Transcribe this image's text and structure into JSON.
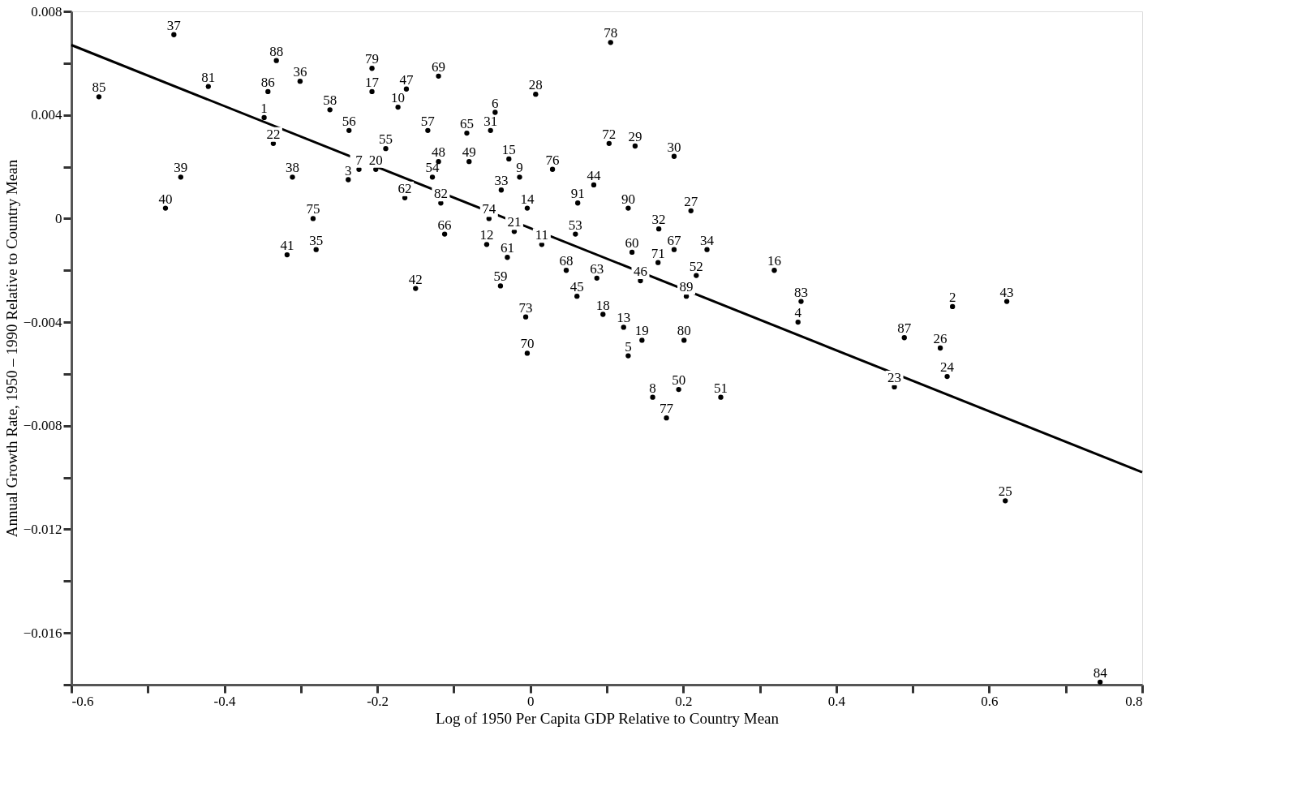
{
  "chart_data": {
    "type": "scatter",
    "xlabel": "Log of 1950 Per Capita GDP Relative to Country Mean",
    "ylabel": "Annual Growth Rate, 1950 – 1990 Relative to Country Mean",
    "xlim": [
      -0.6,
      0.8
    ],
    "ylim": [
      -0.018,
      0.008
    ],
    "xticks": [
      -0.6,
      {
        "value": -0.5,
        "label": null
      },
      -0.4,
      {
        "value": -0.3,
        "label": null
      },
      -0.2,
      {
        "value": -0.1,
        "label": null
      },
      0,
      {
        "value": 0.1,
        "label": null
      },
      0.2,
      {
        "value": 0.3,
        "label": null
      },
      0.4,
      {
        "value": 0.5,
        "label": null
      },
      0.6,
      {
        "value": 0.7,
        "label": null
      },
      0.8
    ],
    "yticks": [
      {
        "value": -0.018,
        "label": null
      },
      {
        "value": -0.016,
        "label": "−0.016"
      },
      {
        "value": -0.014,
        "label": null
      },
      {
        "value": -0.012,
        "label": "−0.012"
      },
      {
        "value": -0.01,
        "label": null
      },
      {
        "value": -0.008,
        "label": "−0.008"
      },
      {
        "value": -0.006,
        "label": null
      },
      {
        "value": -0.004,
        "label": "−0.004"
      },
      {
        "value": -0.002,
        "label": null
      },
      0,
      {
        "value": 0.002,
        "label": null
      },
      0.004,
      {
        "value": 0.006,
        "label": null
      },
      0.008
    ],
    "grid": false,
    "series": [
      {
        "type": "scatter",
        "color": "#000000",
        "marker": "circle",
        "x": [
          -0.466,
          -0.332,
          -0.421,
          -0.343,
          -0.301,
          -0.564,
          -0.207,
          -0.207,
          -0.162,
          -0.12,
          -0.173,
          0.105,
          0.007,
          -0.262,
          -0.348,
          -0.336,
          -0.237,
          -0.046,
          -0.134,
          -0.083,
          -0.052,
          -0.189,
          0.103,
          0.137,
          0.188,
          -0.457,
          -0.477,
          -0.311,
          -0.224,
          -0.202,
          -0.238,
          -0.12,
          -0.08,
          -0.028,
          0.029,
          -0.128,
          -0.014,
          0.083,
          -0.038,
          -0.164,
          -0.117,
          0.062,
          0.128,
          0.21,
          -0.004,
          -0.284,
          -0.054,
          -0.021,
          -0.112,
          0.168,
          0.059,
          0.015,
          -0.318,
          -0.28,
          -0.03,
          -0.057,
          0.133,
          0.188,
          0.231,
          0.167,
          0.047,
          0.087,
          0.144,
          0.217,
          0.319,
          0.204,
          -0.15,
          -0.039,
          0.061,
          0.354,
          0.35,
          0.552,
          0.623,
          -0.006,
          0.095,
          0.122,
          0.146,
          0.128,
          0.201,
          0.489,
          0.536,
          -0.004,
          0.545,
          0.476,
          0.16,
          0.194,
          0.249,
          0.178,
          0.621,
          0.745
        ],
        "values": [
          0.0071,
          0.0061,
          0.0051,
          0.0049,
          0.0053,
          0.0047,
          0.0058,
          0.0049,
          0.005,
          0.0055,
          0.0043,
          0.0068,
          0.0048,
          0.0042,
          0.0039,
          0.0029,
          0.0034,
          0.0041,
          0.0034,
          0.0033,
          0.0034,
          0.0027,
          0.0029,
          0.0028,
          0.0024,
          0.0016,
          0.0004,
          0.0016,
          0.0019,
          0.0019,
          0.0015,
          0.0022,
          0.0022,
          0.0023,
          0.0019,
          0.0016,
          0.0016,
          0.0013,
          0.0011,
          0.0008,
          0.0006,
          0.0006,
          0.0004,
          0.0003,
          0.0004,
          0.0,
          0.0,
          -0.0005,
          -0.0006,
          -0.0004,
          -0.0006,
          -0.001,
          -0.0014,
          -0.0012,
          -0.0015,
          -0.001,
          -0.0013,
          -0.0012,
          -0.0012,
          -0.0017,
          -0.002,
          -0.0023,
          -0.0024,
          -0.0022,
          -0.002,
          -0.003,
          -0.0027,
          -0.0026,
          -0.003,
          -0.0032,
          -0.004,
          -0.0034,
          -0.0032,
          -0.0038,
          -0.0037,
          -0.0042,
          -0.0047,
          -0.0053,
          -0.0047,
          -0.0046,
          -0.005,
          -0.0052,
          -0.0061,
          -0.0065,
          -0.0069,
          -0.0066,
          -0.0069,
          -0.0077,
          -0.0109,
          -0.0179
        ]
      },
      {
        "type": "line",
        "color": "#000000",
        "x": [
          -0.6,
          0.8
        ],
        "values": [
          0.0067,
          -0.0098
        ]
      }
    ],
    "annotations": [
      {
        "text": "37",
        "x": -0.466,
        "y": 0.0071
      },
      {
        "text": "88",
        "x": -0.332,
        "y": 0.0061
      },
      {
        "text": "81",
        "x": -0.421,
        "y": 0.0051
      },
      {
        "text": "86",
        "x": -0.343,
        "y": 0.0049
      },
      {
        "text": "36",
        "x": -0.301,
        "y": 0.0053
      },
      {
        "text": "85",
        "x": -0.564,
        "y": 0.0047
      },
      {
        "text": "79",
        "x": -0.207,
        "y": 0.0058
      },
      {
        "text": "17",
        "x": -0.207,
        "y": 0.0049
      },
      {
        "text": "47",
        "x": -0.162,
        "y": 0.005
      },
      {
        "text": "69",
        "x": -0.12,
        "y": 0.0055
      },
      {
        "text": "10",
        "x": -0.173,
        "y": 0.0043
      },
      {
        "text": "78",
        "x": 0.105,
        "y": 0.0068
      },
      {
        "text": "28",
        "x": 0.007,
        "y": 0.0048
      },
      {
        "text": "58",
        "x": -0.262,
        "y": 0.0042
      },
      {
        "text": "1",
        "x": -0.348,
        "y": 0.0039
      },
      {
        "text": "22",
        "x": -0.336,
        "y": 0.0029
      },
      {
        "text": "56",
        "x": -0.237,
        "y": 0.0034
      },
      {
        "text": "6",
        "x": -0.046,
        "y": 0.0041
      },
      {
        "text": "57",
        "x": -0.134,
        "y": 0.0034
      },
      {
        "text": "65",
        "x": -0.083,
        "y": 0.0033
      },
      {
        "text": "31",
        "x": -0.052,
        "y": 0.0034
      },
      {
        "text": "55",
        "x": -0.189,
        "y": 0.0027
      },
      {
        "text": "72",
        "x": 0.103,
        "y": 0.0029
      },
      {
        "text": "29",
        "x": 0.137,
        "y": 0.0028
      },
      {
        "text": "30",
        "x": 0.188,
        "y": 0.0024
      },
      {
        "text": "39",
        "x": -0.457,
        "y": 0.0016
      },
      {
        "text": "40",
        "x": -0.477,
        "y": 0.0004
      },
      {
        "text": "38",
        "x": -0.311,
        "y": 0.0016
      },
      {
        "text": "7",
        "x": -0.224,
        "y": 0.0019
      },
      {
        "text": "20",
        "x": -0.202,
        "y": 0.0019
      },
      {
        "text": "3",
        "x": -0.238,
        "y": 0.0015
      },
      {
        "text": "48",
        "x": -0.12,
        "y": 0.0022
      },
      {
        "text": "49",
        "x": -0.08,
        "y": 0.0022
      },
      {
        "text": "15",
        "x": -0.028,
        "y": 0.0023
      },
      {
        "text": "76",
        "x": 0.029,
        "y": 0.0019
      },
      {
        "text": "54",
        "x": -0.128,
        "y": 0.0016
      },
      {
        "text": "9",
        "x": -0.014,
        "y": 0.0016
      },
      {
        "text": "44",
        "x": 0.083,
        "y": 0.0013
      },
      {
        "text": "33",
        "x": -0.038,
        "y": 0.0011
      },
      {
        "text": "62",
        "x": -0.164,
        "y": 0.0008
      },
      {
        "text": "82",
        "x": -0.117,
        "y": 0.0006
      },
      {
        "text": "91",
        "x": 0.062,
        "y": 0.0006
      },
      {
        "text": "90",
        "x": 0.128,
        "y": 0.0004
      },
      {
        "text": "27",
        "x": 0.21,
        "y": 0.0003
      },
      {
        "text": "14",
        "x": -0.004,
        "y": 0.0004
      },
      {
        "text": "75",
        "x": -0.284,
        "y": 0.0
      },
      {
        "text": "74",
        "x": -0.054,
        "y": 0.0
      },
      {
        "text": "21",
        "x": -0.021,
        "y": -0.0005
      },
      {
        "text": "66",
        "x": -0.112,
        "y": -0.0006
      },
      {
        "text": "32",
        "x": 0.168,
        "y": -0.0004
      },
      {
        "text": "53",
        "x": 0.059,
        "y": -0.0006
      },
      {
        "text": "11",
        "x": 0.015,
        "y": -0.001
      },
      {
        "text": "41",
        "x": -0.318,
        "y": -0.0014
      },
      {
        "text": "35",
        "x": -0.28,
        "y": -0.0012
      },
      {
        "text": "61",
        "x": -0.03,
        "y": -0.0015
      },
      {
        "text": "12",
        "x": -0.057,
        "y": -0.001
      },
      {
        "text": "60",
        "x": 0.133,
        "y": -0.0013
      },
      {
        "text": "67",
        "x": 0.188,
        "y": -0.0012
      },
      {
        "text": "34",
        "x": 0.231,
        "y": -0.0012
      },
      {
        "text": "71",
        "x": 0.167,
        "y": -0.0017
      },
      {
        "text": "68",
        "x": 0.047,
        "y": -0.002
      },
      {
        "text": "63",
        "x": 0.087,
        "y": -0.0023
      },
      {
        "text": "46",
        "x": 0.144,
        "y": -0.0024
      },
      {
        "text": "52",
        "x": 0.217,
        "y": -0.0022
      },
      {
        "text": "16",
        "x": 0.319,
        "y": -0.002
      },
      {
        "text": "89",
        "x": 0.204,
        "y": -0.003
      },
      {
        "text": "42",
        "x": -0.15,
        "y": -0.0027
      },
      {
        "text": "59",
        "x": -0.039,
        "y": -0.0026
      },
      {
        "text": "45",
        "x": 0.061,
        "y": -0.003
      },
      {
        "text": "83",
        "x": 0.354,
        "y": -0.0032
      },
      {
        "text": "4",
        "x": 0.35,
        "y": -0.004
      },
      {
        "text": "2",
        "x": 0.552,
        "y": -0.0034
      },
      {
        "text": "43",
        "x": 0.623,
        "y": -0.0032
      },
      {
        "text": "73",
        "x": -0.006,
        "y": -0.0038
      },
      {
        "text": "18",
        "x": 0.095,
        "y": -0.0037
      },
      {
        "text": "13",
        "x": 0.122,
        "y": -0.0042
      },
      {
        "text": "19",
        "x": 0.146,
        "y": -0.0047
      },
      {
        "text": "5",
        "x": 0.128,
        "y": -0.0053
      },
      {
        "text": "80",
        "x": 0.201,
        "y": -0.0047
      },
      {
        "text": "87",
        "x": 0.489,
        "y": -0.0046
      },
      {
        "text": "26",
        "x": 0.536,
        "y": -0.005
      },
      {
        "text": "70",
        "x": -0.004,
        "y": -0.0052
      },
      {
        "text": "24",
        "x": 0.545,
        "y": -0.0061
      },
      {
        "text": "23",
        "x": 0.476,
        "y": -0.0065
      },
      {
        "text": "8",
        "x": 0.16,
        "y": -0.0069
      },
      {
        "text": "50",
        "x": 0.194,
        "y": -0.0066
      },
      {
        "text": "51",
        "x": 0.249,
        "y": -0.0069
      },
      {
        "text": "77",
        "x": 0.178,
        "y": -0.0077
      },
      {
        "text": "25",
        "x": 0.621,
        "y": -0.0109
      },
      {
        "text": "84",
        "x": 0.745,
        "y": -0.0179
      }
    ]
  }
}
